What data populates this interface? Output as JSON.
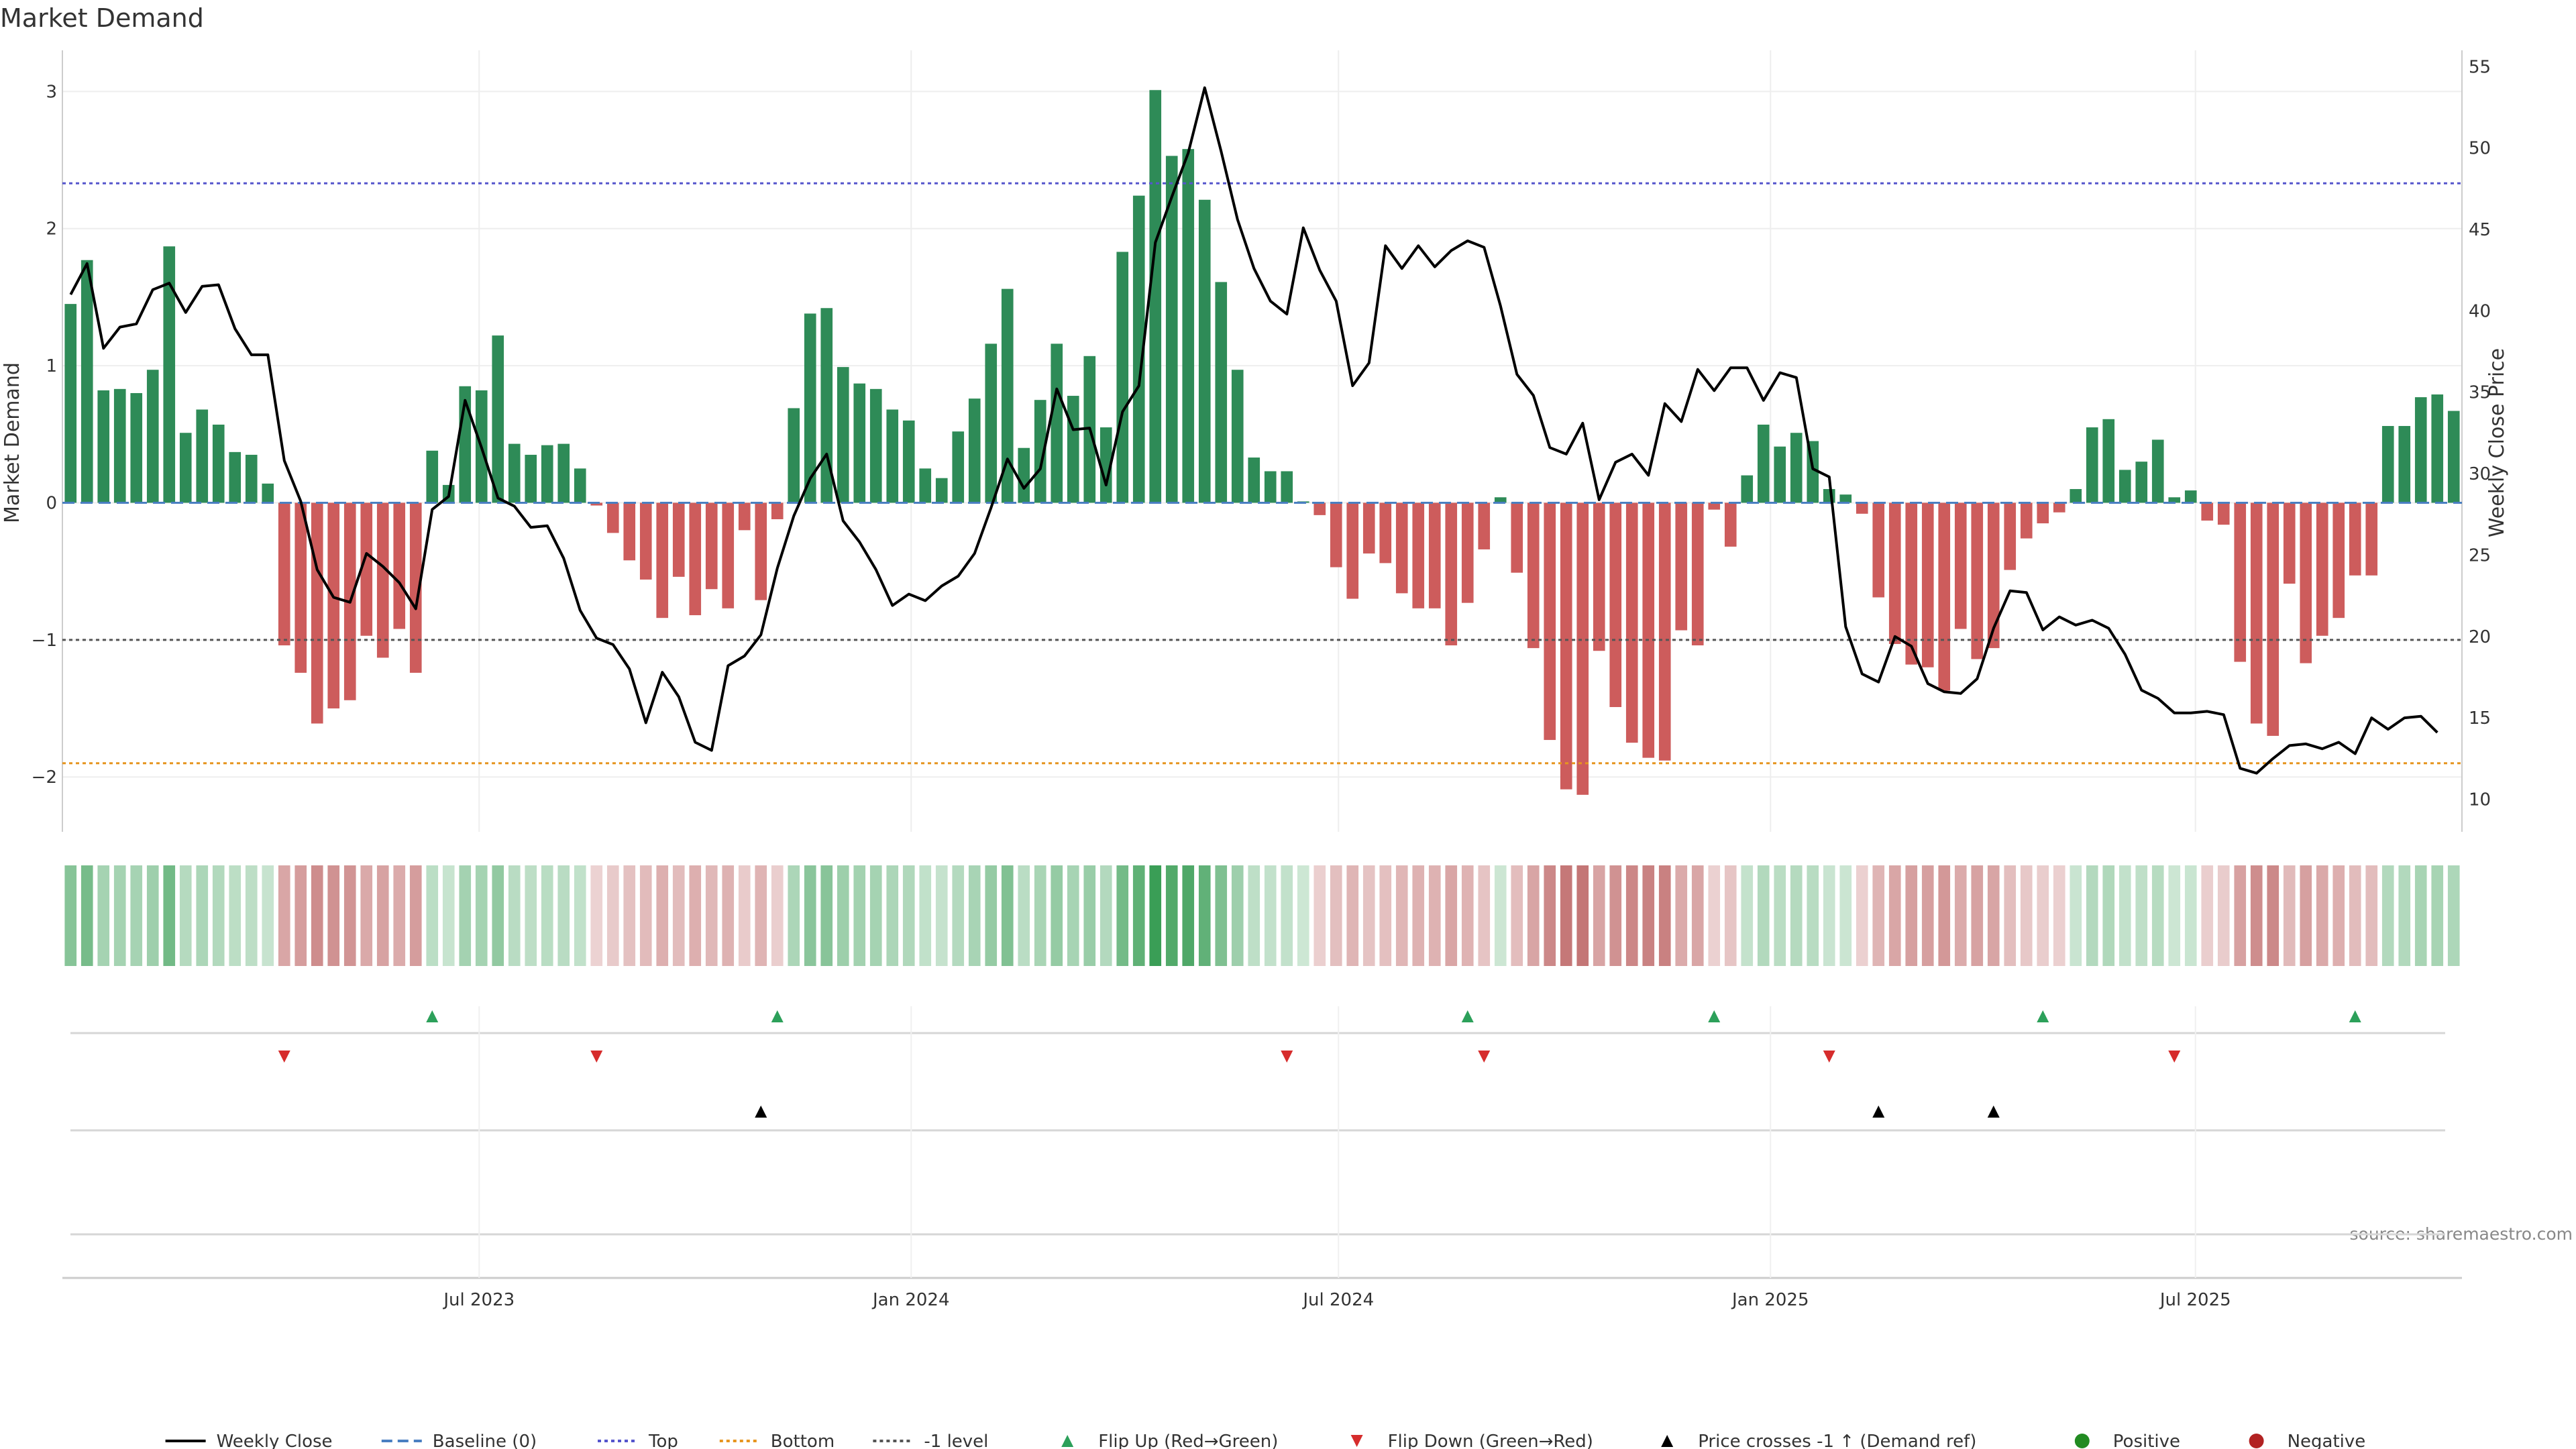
{
  "chart_data": {
    "type": "bar",
    "title": "Market Demand",
    "ylabel": "Market Demand",
    "y2label": "Weekly Close Price",
    "source": "source: sharemaestro.com",
    "ylim": [
      -2.4,
      3.3
    ],
    "y2lim": [
      8,
      56
    ],
    "yticks": [
      -2,
      -1,
      0,
      1,
      2,
      3
    ],
    "ytick_labels": [
      "−2",
      "−1",
      "0",
      "1",
      "2",
      "3"
    ],
    "y2ticks": [
      10,
      15,
      20,
      25,
      30,
      35,
      40,
      45,
      50,
      55
    ],
    "x_start": "2023-01-08",
    "x_step_days": 7,
    "xticks": [
      {
        "date": "2023-07-01",
        "label": "Jul 2023"
      },
      {
        "date": "2024-01-01",
        "label": "Jan 2024"
      },
      {
        "date": "2024-07-01",
        "label": "Jul 2024"
      },
      {
        "date": "2025-01-01",
        "label": "Jan 2025"
      },
      {
        "date": "2025-07-01",
        "label": "Jul 2025"
      }
    ],
    "reference_lines": [
      {
        "name": "Baseline (0)",
        "value": 0,
        "color": "#4a7fc1",
        "style": "dashed"
      },
      {
        "name": "Top",
        "value": 2.33,
        "color": "#5555cc",
        "style": "dotted"
      },
      {
        "name": "Bottom",
        "value": -1.9,
        "color": "#e69520",
        "style": "dotted"
      },
      {
        "name": "-1 level",
        "value": -1,
        "color": "#555555",
        "style": "dotted"
      }
    ],
    "demand": [
      1.45,
      1.77,
      0.82,
      0.83,
      0.8,
      0.97,
      1.87,
      0.51,
      0.68,
      0.57,
      0.37,
      0.35,
      0.14,
      -1.04,
      -1.24,
      -1.61,
      -1.5,
      -1.44,
      -0.97,
      -1.13,
      -0.92,
      -1.24,
      0.38,
      0.13,
      0.85,
      0.82,
      1.22,
      0.43,
      0.35,
      0.42,
      0.43,
      0.25,
      -0.02,
      -0.22,
      -0.42,
      -0.56,
      -0.84,
      -0.54,
      -0.82,
      -0.63,
      -0.77,
      -0.2,
      -0.71,
      -0.12,
      0.69,
      1.38,
      1.42,
      0.99,
      0.87,
      0.83,
      0.68,
      0.6,
      0.25,
      0.18,
      0.52,
      0.76,
      1.16,
      1.56,
      0.4,
      0.75,
      1.16,
      0.78,
      1.07,
      0.55,
      1.83,
      2.24,
      3.01,
      2.53,
      2.58,
      2.21,
      1.61,
      0.97,
      0.33,
      0.23,
      0.23,
      0.01,
      -0.09,
      -0.47,
      -0.7,
      -0.37,
      -0.44,
      -0.66,
      -0.77,
      -0.77,
      -1.04,
      -0.73,
      -0.34,
      0.04,
      -0.51,
      -1.06,
      -1.73,
      -2.09,
      -2.13,
      -1.08,
      -1.49,
      -1.75,
      -1.86,
      -1.88,
      -0.93,
      -1.04,
      -0.05,
      -0.32,
      0.2,
      0.57,
      0.41,
      0.51,
      0.45,
      0.1,
      0.06,
      -0.08,
      -0.69,
      -1.03,
      -1.18,
      -1.2,
      -1.37,
      -0.92,
      -1.14,
      -1.06,
      -0.49,
      -0.26,
      -0.15,
      -0.07,
      0.1,
      0.55,
      0.61,
      0.24,
      0.3,
      0.46,
      0.04,
      0.09,
      -0.13,
      -0.16,
      -1.16,
      -1.61,
      -1.7,
      -0.59,
      -1.17,
      -0.97,
      -0.84,
      -0.53,
      -0.53,
      0.56,
      0.56,
      0.77,
      0.79,
      0.67
    ],
    "close": [
      41.0,
      42.9,
      37.7,
      39.0,
      39.2,
      41.3,
      41.7,
      39.9,
      41.5,
      41.6,
      38.9,
      37.3,
      37.3,
      30.8,
      28.3,
      24.1,
      22.4,
      22.1,
      25.1,
      24.3,
      23.3,
      21.7,
      27.8,
      28.6,
      34.5,
      31.6,
      28.5,
      28.0,
      26.7,
      26.8,
      24.8,
      21.6,
      19.9,
      19.5,
      18.0,
      14.7,
      17.8,
      16.3,
      13.5,
      13.0,
      18.2,
      18.8,
      20.1,
      24.2,
      27.4,
      29.7,
      31.2,
      27.1,
      25.8,
      24.1,
      21.9,
      22.6,
      22.2,
      23.1,
      23.7,
      25.1,
      27.9,
      30.9,
      29.1,
      30.3,
      35.2,
      32.7,
      32.8,
      29.3,
      33.8,
      35.4,
      44.2,
      47.0,
      49.7,
      53.7,
      49.8,
      45.6,
      42.6,
      40.6,
      39.8,
      45.1,
      42.5,
      40.6,
      35.4,
      36.8,
      44.0,
      42.6,
      44.0,
      42.7,
      43.7,
      44.3,
      43.9,
      40.3,
      36.1,
      34.8,
      31.6,
      31.2,
      33.1,
      28.4,
      30.7,
      31.2,
      29.9,
      34.3,
      33.2,
      36.4,
      35.1,
      36.5,
      36.5,
      34.5,
      36.2,
      35.9,
      30.3,
      29.8,
      20.6,
      17.7,
      17.2,
      20.0,
      19.4,
      17.1,
      16.6,
      16.5,
      17.4,
      20.5,
      22.8,
      22.7,
      20.4,
      21.2,
      20.7,
      21.0,
      20.5,
      18.9,
      16.7,
      16.2,
      15.3,
      15.3,
      15.4,
      15.2,
      11.9,
      11.6,
      12.5,
      13.3,
      13.4,
      13.1,
      13.5,
      12.8,
      15.0,
      14.3,
      15.0,
      15.1,
      14.1
    ],
    "flip_up": [
      22,
      43,
      85,
      100,
      120,
      139
    ],
    "flip_down": [
      13,
      32,
      74,
      86,
      107,
      128
    ],
    "price_cross": [
      42,
      110,
      117
    ],
    "heat_colors": {
      "positive": "#3a9e56",
      "negative": "#b45050",
      "base": "#ffffff"
    },
    "legend": [
      {
        "label": "Weekly Close",
        "kind": "line",
        "color": "#000000"
      },
      {
        "label": "Baseline (0)",
        "kind": "dashed",
        "color": "#4a7fc1"
      },
      {
        "label": "Top",
        "kind": "dotted",
        "color": "#5555cc"
      },
      {
        "label": "Bottom",
        "kind": "dotted",
        "color": "#e69520"
      },
      {
        "label": "-1 level",
        "kind": "dotted",
        "color": "#555555"
      },
      {
        "label": "Flip Up (Red→Green)",
        "kind": "tri-up",
        "color": "#2ca05a"
      },
      {
        "label": "Flip Down (Green→Red)",
        "kind": "tri-down",
        "color": "#d62c2c"
      },
      {
        "label": "Price crosses -1 ↑ (Demand ref)",
        "kind": "tri-up",
        "color": "#000000"
      },
      {
        "label": "Positive",
        "kind": "dot",
        "color": "#228b22"
      },
      {
        "label": "Negative",
        "kind": "dot",
        "color": "#b22222"
      }
    ],
    "colors": {
      "positive_bar": "#2e8b57",
      "negative_bar": "#cd5c5c",
      "line": "#000000"
    }
  }
}
